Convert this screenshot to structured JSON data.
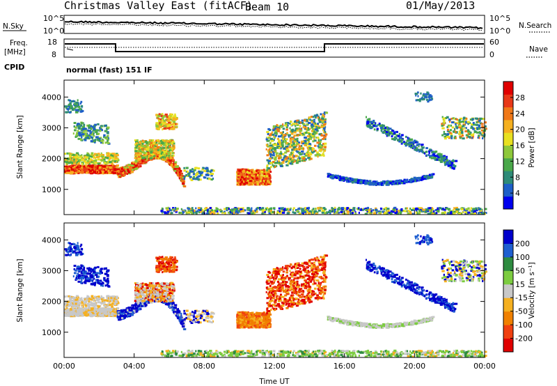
{
  "header": {
    "title": "Christmas Valley East (fitACF)",
    "beam": "Beam 10",
    "date": "01/May/2013"
  },
  "status_panels": {
    "nsky_label": "N.Sky",
    "nsearch_label": "N.Search",
    "freq_label_line1": "Freq.",
    "freq_label_line2": "[MHz]",
    "nave_label": "Nave",
    "cpid_label": "CPID",
    "cpid_value": "normal (fast) 151 IF",
    "noise_ticks_left": [
      "10^5",
      "10^0"
    ],
    "noise_ticks_right": [
      "10^5",
      "10^0"
    ],
    "freq_ticks": [
      "18",
      "8"
    ],
    "nave_ticks": [
      "60",
      "0"
    ]
  },
  "chart_data": [
    {
      "type": "heatmap",
      "name": "power",
      "ylabel": "Slant Range [km]",
      "xlabel": "",
      "x_ticks": [
        "00:00",
        "04:00",
        "08:00",
        "12:00",
        "16:00",
        "20:00",
        "00:00"
      ],
      "y_ticks": [
        1000,
        2000,
        3000,
        4000
      ],
      "ylim": [
        180,
        4550
      ],
      "colorbar": {
        "label": "Power [dB]",
        "ticks": [
          "4",
          "8",
          "12",
          "16",
          "20",
          "24",
          "28"
        ],
        "colors": [
          "#0000ee",
          "#1e5fc8",
          "#2e8b78",
          "#4aa84a",
          "#8ec83a",
          "#e8e020",
          "#f5b020",
          "#f07818",
          "#e83818",
          "#e00000"
        ]
      }
    },
    {
      "type": "heatmap",
      "name": "velocity",
      "ylabel": "Slant Range [km]",
      "xlabel": "Time UT",
      "x_ticks": [
        "00:00",
        "04:00",
        "08:00",
        "12:00",
        "16:00",
        "20:00",
        "00:00"
      ],
      "y_ticks": [
        1000,
        2000,
        3000,
        4000
      ],
      "ylim": [
        180,
        4550
      ],
      "colorbar": {
        "label": "Velocity [m s⁻¹]",
        "ticks": [
          "200",
          "100",
          "50",
          "15",
          "-15",
          "-50",
          "-100",
          "-200"
        ],
        "colors": [
          "#0000cc",
          "#1f5fd0",
          "#2e8b40",
          "#7ccc40",
          "#c8c8c8",
          "#f5b020",
          "#f08000",
          "#f04010",
          "#e00000"
        ]
      }
    }
  ],
  "colors": {
    "power_strong": "#e83818",
    "power_mid": "#f5b020",
    "power_weak": "#1e5fc8",
    "velocity_toward": "#0000cc",
    "velocity_away": "#e00000",
    "velocity_ground": "#c8c8c8"
  }
}
